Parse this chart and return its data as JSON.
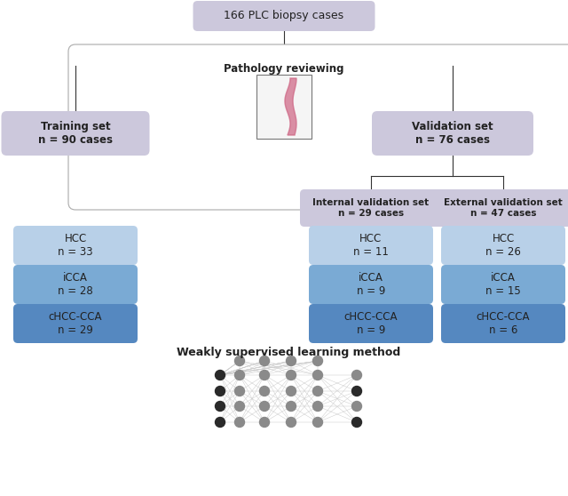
{
  "title_box": "166 PLC biopsy cases",
  "title_box_color": "#ccc8dc",
  "pathology_label": "Pathology reviewing",
  "training_label": "Training set\nn = 90 cases",
  "training_color": "#ccc8dc",
  "validation_label": "Validation set\nn = 76 cases",
  "validation_color": "#ccc8dc",
  "internal_label": "Internal validation set\nn = 29 cases",
  "internal_color": "#ccc8dc",
  "external_label": "External validation set\nn = 47 cases",
  "external_color": "#ccc8dc",
  "boxes_left": [
    {
      "label": "HCC\nn = 33",
      "color": "#b8d0e8"
    },
    {
      "label": "iCCA\nn = 28",
      "color": "#7aaad4"
    },
    {
      "label": "cHCC-CCA\nn = 29",
      "color": "#5588c0"
    }
  ],
  "boxes_mid": [
    {
      "label": "HCC\nn = 11",
      "color": "#b8d0e8"
    },
    {
      "label": "iCCA\nn = 9",
      "color": "#7aaad4"
    },
    {
      "label": "cHCC-CCA\nn = 9",
      "color": "#5588c0"
    }
  ],
  "boxes_right": [
    {
      "label": "HCC\nn = 26",
      "color": "#b8d0e8"
    },
    {
      "label": "iCCA\nn = 15",
      "color": "#7aaad4"
    },
    {
      "label": "cHCC-CCA\nn = 6",
      "color": "#5588c0"
    }
  ],
  "nn_label": "Weakly supervised learning method",
  "bg_color": "#ffffff",
  "outer_box_color": "#e8e8e8"
}
